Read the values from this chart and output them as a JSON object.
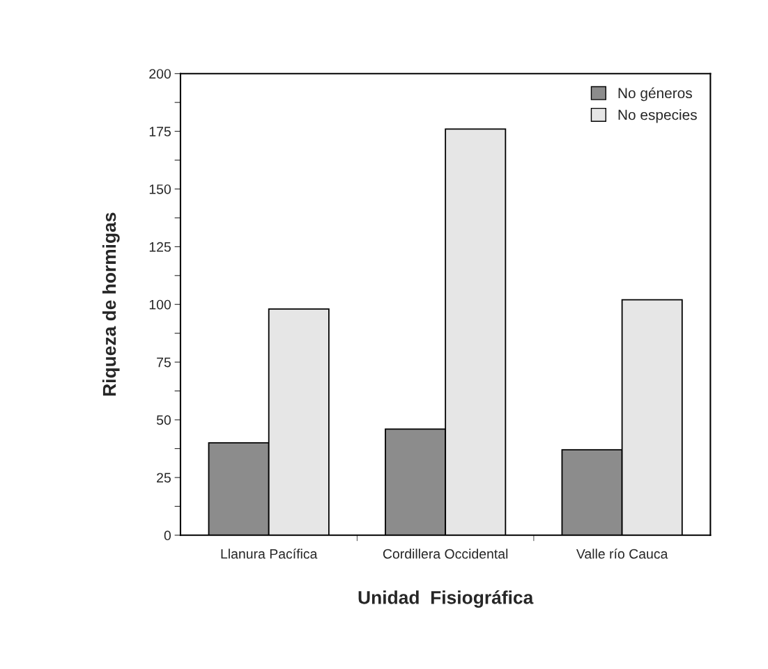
{
  "chart_data": {
    "type": "bar",
    "xlabel": "Unidad  Fisiográfica",
    "ylabel": "Riqueza de hormigas",
    "categories": [
      "Llanura Pacífica",
      "Cordillera Occidental",
      "Valle río Cauca"
    ],
    "series": [
      {
        "name": "No géneros",
        "color": "#8c8c8c",
        "values": [
          40,
          46,
          37
        ]
      },
      {
        "name": "No especies",
        "color": "#e6e6e6",
        "values": [
          98,
          176,
          102
        ]
      }
    ],
    "ylim": [
      0,
      200
    ],
    "yticks": [
      0,
      {
        "value": 12.5,
        "label": null
      },
      25,
      {
        "value": 37.5,
        "label": null
      },
      50,
      {
        "value": 62.5,
        "label": null
      },
      75,
      {
        "value": 87.5,
        "label": null
      },
      100,
      {
        "value": 112.5,
        "label": null
      },
      125,
      {
        "value": 137.5,
        "label": null
      },
      150,
      {
        "value": 162.5,
        "label": null
      },
      175,
      {
        "value": 187.5,
        "label": null
      },
      200
    ],
    "grid": false,
    "legend": "top right"
  }
}
